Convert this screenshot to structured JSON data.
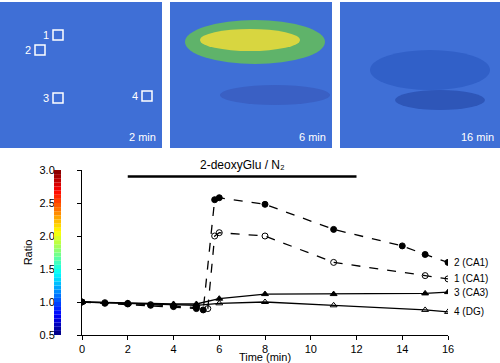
{
  "chart_data": {
    "type": "line",
    "xlabel": "Time (min)",
    "ylabel": "Ratio",
    "xlim": [
      0,
      16
    ],
    "xticks": [
      0,
      2,
      4,
      6,
      8,
      10,
      12,
      14,
      16
    ],
    "ylim": [
      0.5,
      3.0
    ],
    "yticks": [
      0.5,
      {
        "value": 1,
        "label": "1.0"
      },
      1.5,
      {
        "value": 2,
        "label": "2.0"
      },
      2.5,
      {
        "value": 3,
        "label": "3.0"
      }
    ],
    "annotations": [
      {
        "text": "2-deoxyGlu / N₂",
        "x": [
          2,
          12
        ],
        "y": 2.9
      }
    ],
    "series": [
      {
        "name": "2 (CA1)",
        "color": "#000000",
        "line_style": "dash",
        "marker": "circle",
        "x": [
          0,
          1,
          2,
          3,
          4,
          5,
          5.3,
          5.8,
          6,
          8,
          11,
          14,
          15,
          16
        ],
        "values": [
          1.0,
          0.98,
          0.97,
          0.95,
          0.93,
          0.9,
          0.88,
          2.55,
          2.58,
          2.48,
          2.1,
          1.85,
          1.72,
          1.6
        ]
      },
      {
        "name": "1 (CA1)",
        "color": "#000000",
        "line_style": "dash",
        "marker": "circle-open",
        "x": [
          0,
          1,
          2,
          3,
          4,
          5,
          5.5,
          5.8,
          6,
          8,
          11,
          15,
          16
        ],
        "values": [
          1.0,
          0.99,
          0.98,
          0.96,
          0.94,
          0.92,
          0.9,
          2.0,
          2.05,
          2.0,
          1.6,
          1.4,
          1.35
        ]
      },
      {
        "name": "3 (CA3)",
        "color": "#000000",
        "line_style": "solid",
        "marker": "triangle-up",
        "x": [
          0,
          2,
          4,
          5,
          6,
          8,
          11,
          15,
          16
        ],
        "values": [
          1.0,
          0.98,
          0.97,
          0.97,
          1.05,
          1.12,
          1.12,
          1.13,
          1.15
        ]
      },
      {
        "name": "4 (DG)",
        "color": "#000000",
        "line_style": "solid",
        "marker": "triangle-up-open",
        "x": [
          0,
          2,
          4,
          5,
          6,
          8,
          11,
          15,
          16
        ],
        "values": [
          1.0,
          0.98,
          0.96,
          0.95,
          0.98,
          1.0,
          0.95,
          0.88,
          0.85
        ]
      }
    ]
  },
  "images": {
    "panels": [
      "2 min",
      "6 min",
      "16 min"
    ],
    "regions": [
      "1",
      "2",
      "3",
      "4"
    ]
  }
}
